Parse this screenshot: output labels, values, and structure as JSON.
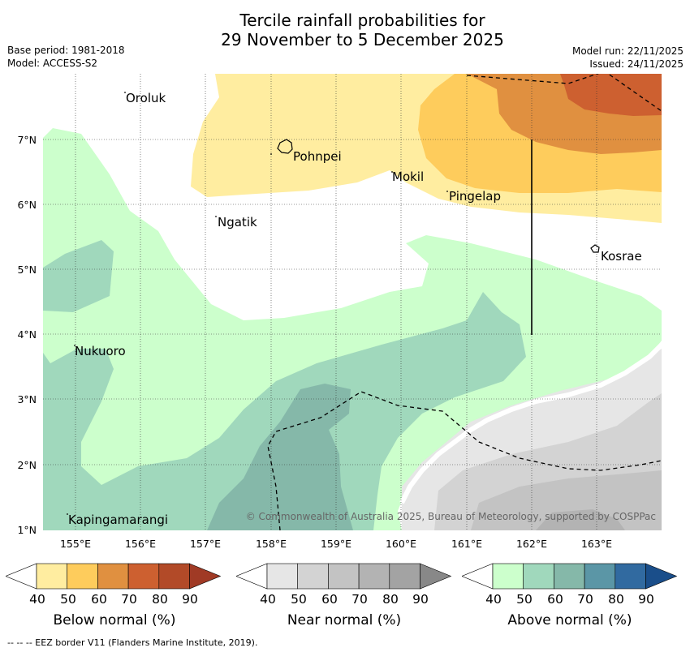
{
  "title": {
    "line1": "Tercile rainfall probabilities for",
    "line2": "29 November to 5 December 2025"
  },
  "header": {
    "base_period": "Base period: 1981-2018",
    "model": "Model: ACCESS-S2",
    "model_run": "Model run: 22/11/2025",
    "issued": "Issued: 24/11/2025"
  },
  "map": {
    "lat_labels": [
      "7°N",
      "6°N",
      "5°N",
      "4°N",
      "3°N",
      "2°N",
      "1°N"
    ],
    "lon_labels": [
      "155°E",
      "156°E",
      "157°E",
      "158°E",
      "159°E",
      "160°E",
      "161°E",
      "162°E",
      "163°E"
    ],
    "places": [
      {
        "name": "Oroluk"
      },
      {
        "name": "Pohnpei"
      },
      {
        "name": "Mokil"
      },
      {
        "name": "Pingelap"
      },
      {
        "name": "Ngatik"
      },
      {
        "name": "Kosrae"
      },
      {
        "name": "Nukuoro"
      },
      {
        "name": "Kapingamarangi"
      }
    ],
    "copyright": "© Commonwealth of Australia 2025, Bureau of Meteorology, supported by COSPPac"
  },
  "legend": {
    "below": {
      "label": "Below normal (%)",
      "ticks": [
        "40",
        "50",
        "60",
        "70",
        "80",
        "90"
      ],
      "colors": [
        "#ffffff",
        "#ffeda0",
        "#fecc5c",
        "#e09040",
        "#cd6030",
        "#b24a28",
        "#a03a25"
      ]
    },
    "near": {
      "label": "Near normal (%)",
      "ticks": [
        "40",
        "50",
        "60",
        "70",
        "80",
        "90"
      ],
      "colors": [
        "#ffffff",
        "#e6e6e6",
        "#d3d3d3",
        "#c3c3c3",
        "#b3b3b3",
        "#a3a3a3",
        "#888888"
      ]
    },
    "above": {
      "label": "Above normal (%)",
      "ticks": [
        "40",
        "50",
        "60",
        "70",
        "80",
        "90"
      ],
      "colors": [
        "#ffffff",
        "#ccffcc",
        "#a0d8bc",
        "#85b8a9",
        "#5b96a6",
        "#316aa0",
        "#1a4e8a"
      ]
    }
  },
  "footer": {
    "eez_note": "--  --  -- EEZ border V11 (Flanders Marine Institute, 2019)."
  }
}
